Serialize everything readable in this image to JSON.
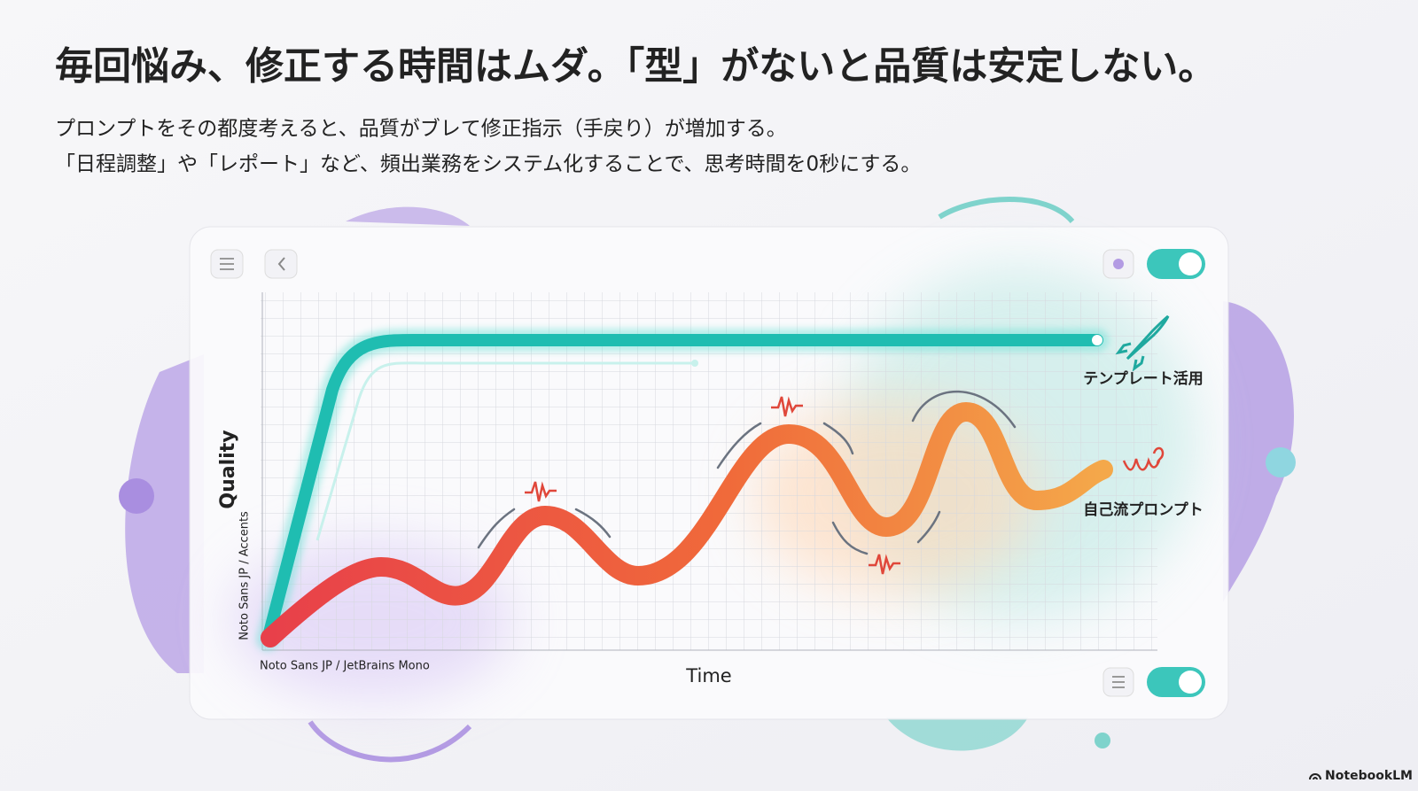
{
  "header": {
    "title": "毎回悩み、修正する時間はムダ。「型」がないと品質は安定しない。",
    "lines": [
      "プロンプトをその都度考えると、品質がブレて修正指示（手戻り）が増加する。",
      "「日程調整」や「レポート」など、頻出業務をシステム化することで、思考時間を0秒にする。"
    ]
  },
  "chart": {
    "y_label": "Quality",
    "y_sublabel": "Noto Sans JP / Accents",
    "x_sublabel": "Noto Sans JP / JetBrains Mono",
    "x_label": "Time",
    "legend": {
      "template": "テンプレート活用",
      "own": "自己流プロンプト"
    }
  },
  "footer": {
    "brand": "NotebookLM"
  }
}
